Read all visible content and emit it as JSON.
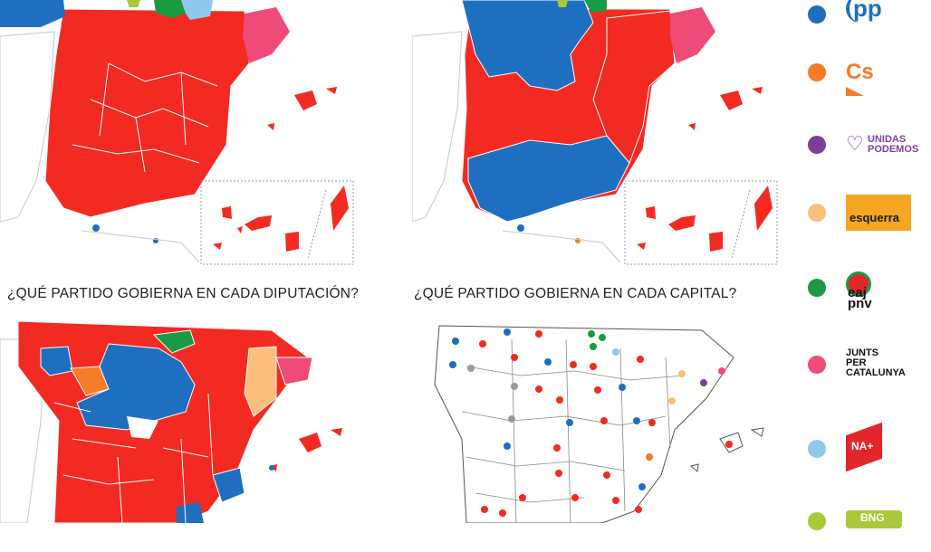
{
  "captions": {
    "diputaciones": "¿QUÉ PARTIDO GOBIERNA EN CADA DIPUTACIÓN?",
    "capitales": "¿QUÉ PARTIDO GOBIERNA EN CADA CAPITAL?"
  },
  "colors": {
    "psoe": "#f22a22",
    "pp": "#1f6fc0",
    "cs": "#f47b27",
    "podemos": "#7b3f99",
    "erc": "#fbbf7c",
    "pnv": "#1a9a45",
    "junts": "#ee4b78",
    "na_plus": "#8ec9ec",
    "bng": "#a7c93a",
    "neutral": "#9a9a9a"
  },
  "legend": [
    {
      "party": "PP",
      "logo_text": "pp",
      "color": "#1f6fc0",
      "icon": "pp-logo"
    },
    {
      "party": "Cs",
      "logo_text": "Cs",
      "color": "#f47b27",
      "icon": "cs-logo"
    },
    {
      "party": "Unidas Podemos",
      "logo_text": "UNIDAS PODEMOS",
      "color": "#7b3f99",
      "icon": "podemos-logo"
    },
    {
      "party": "ERC",
      "logo_text": "esquerra",
      "color": "#fbbf7c",
      "icon": "erc-logo"
    },
    {
      "party": "PNV",
      "logo_text": "eaj pnv",
      "color": "#1a9a45",
      "icon": "pnv-logo"
    },
    {
      "party": "Junts per Catalunya",
      "logo_text": "JUNTS PER CATALUNYA",
      "color": "#ee4b78",
      "icon": "junts-logo"
    },
    {
      "party": "NA+",
      "logo_text": "NA+",
      "color": "#8ec9ec",
      "icon": "na-logo"
    },
    {
      "party": "BNG",
      "logo_text": "BNG",
      "color": "#a7c93a",
      "icon": "bng-logo"
    }
  ]
}
